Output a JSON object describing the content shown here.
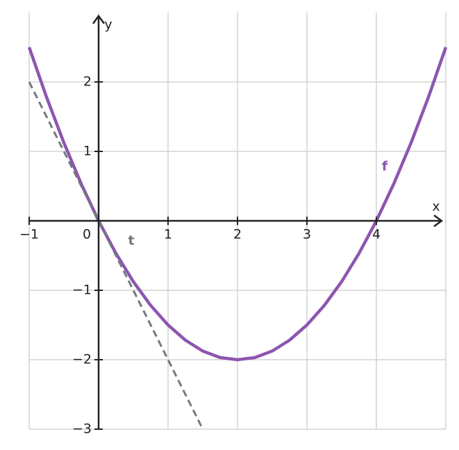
{
  "chart_data": {
    "type": "line",
    "xlabel": "x",
    "ylabel": "y",
    "xlim": [
      -1,
      5
    ],
    "ylim": [
      -3,
      3
    ],
    "xticks": [
      {
        "value": -1,
        "label": "−1"
      },
      0,
      1,
      2,
      3,
      4
    ],
    "yticks": [
      {
        "value": -3,
        "label": "−3"
      },
      {
        "value": -2,
        "label": "−2"
      },
      {
        "value": -1,
        "label": "−1"
      },
      1,
      2
    ],
    "grid": true,
    "series": [
      {
        "name": "f",
        "color": "#8e55b0",
        "style": "solid",
        "x": [
          -1,
          -0.75,
          -0.5,
          -0.25,
          0,
          0.25,
          0.5,
          0.75,
          1,
          1.25,
          1.5,
          1.75,
          2,
          2.25,
          2.5,
          2.75,
          3,
          3.25,
          3.5,
          3.75,
          4,
          4.25,
          4.5,
          4.75,
          5
        ],
        "values": [
          2.5,
          1.78125,
          1.125,
          0.53125,
          0,
          -0.46875,
          -0.875,
          -1.21875,
          -1.5,
          -1.71875,
          -1.875,
          -1.96875,
          -2,
          -1.96875,
          -1.875,
          -1.71875,
          -1.5,
          -1.21875,
          -0.875,
          -0.46875,
          0,
          0.53125,
          1.125,
          1.78125,
          2.5
        ]
      },
      {
        "name": "t",
        "color": "#707b7c",
        "style": "dashed",
        "x": [
          -1,
          1.5
        ],
        "values": [
          2,
          -3
        ]
      }
    ]
  }
}
